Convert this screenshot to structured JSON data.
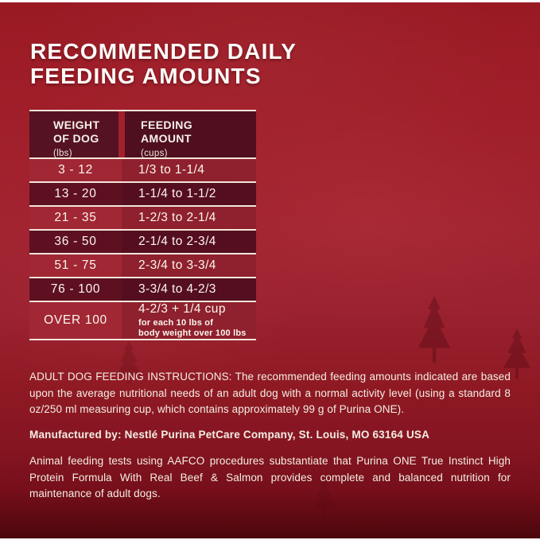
{
  "title": {
    "line1": "RECOMMENDED DAILY",
    "line2": "FEEDING AMOUNTS"
  },
  "table": {
    "header": {
      "col1_line1": "WEIGHT",
      "col1_line2": "OF DOG",
      "col1_unit": "(lbs)",
      "col2_line1": "FEEDING",
      "col2_line2": "AMOUNT",
      "col2_unit": "(cups)"
    },
    "rows": [
      {
        "weight": "3 - 12",
        "amount": "1/3 to 1-1/4"
      },
      {
        "weight": "13 - 20",
        "amount": "1-1/4 to 1-1/2"
      },
      {
        "weight": "21 - 35",
        "amount": "1-2/3 to 2-1/4"
      },
      {
        "weight": "36 - 50",
        "amount": "2-1/4 to 2-3/4"
      },
      {
        "weight": "51 - 75",
        "amount": "2-3/4 to 3-3/4"
      },
      {
        "weight": "76 - 100",
        "amount": "3-3/4 to 4-2/3"
      },
      {
        "weight": "OVER 100",
        "amount": "4-2/3 + 1/4 cup",
        "note_line1": "for each 10 lbs of",
        "note_line2": "body weight over 100 lbs"
      }
    ]
  },
  "paragraphs": {
    "instructions": "ADULT DOG FEEDING INSTRUCTIONS: The recommended feeding amounts indicated are based upon the average nutritional needs of an adult dog with a normal activity level (using a standard 8 oz/250 ml measuring cup, which contains approximately 99 g of Purina ONE).",
    "manufactured": "Manufactured by: Nestlé Purina PetCare Company, St. Louis, MO 63164 USA",
    "aafco": "Animal feeding tests using AAFCO procedures substantiate that Purina ONE True Instinct High Protein Formula With Real Beef & Salmon provides complete and balanced nutrition for maintenance of adult dogs."
  },
  "colors": {
    "background_red": "#9e1d28",
    "dark_row": "#5e1021",
    "light_row": "#a12734",
    "separator_line": "#f7f0e5",
    "text": "#f6f1e8"
  }
}
